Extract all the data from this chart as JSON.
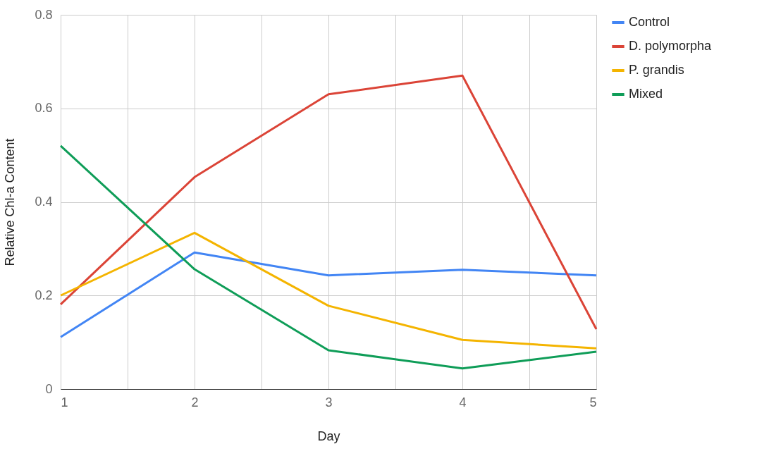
{
  "chart_data": {
    "type": "line",
    "xlabel": "Day",
    "ylabel": "Relative Chl-a Content",
    "x": [
      1,
      2,
      3,
      4,
      5
    ],
    "series": [
      {
        "name": "Control",
        "color": "#4285f4",
        "values": [
          0.111,
          0.292,
          0.243,
          0.255,
          0.243
        ]
      },
      {
        "name": "D. polymorpha",
        "color": "#db4437",
        "values": [
          0.181,
          0.453,
          0.63,
          0.67,
          0.128
        ]
      },
      {
        "name": "P. grandis",
        "color": "#f4b400",
        "values": [
          0.2,
          0.334,
          0.178,
          0.105,
          0.087
        ]
      },
      {
        "name": "Mixed",
        "color": "#0f9d58",
        "values": [
          0.52,
          0.256,
          0.083,
          0.044,
          0.08
        ]
      }
    ],
    "xlim": [
      1,
      5
    ],
    "xticks": [
      1,
      {
        "value": 1.5,
        "label": null
      },
      2,
      {
        "value": 2.5,
        "label": null
      },
      3,
      {
        "value": 3.5,
        "label": null
      },
      4,
      {
        "value": 4.5,
        "label": null
      },
      5
    ],
    "ylim": [
      0,
      0.8
    ],
    "yticks": [
      0,
      0.2,
      0.4,
      0.6,
      0.8
    ],
    "grid": true,
    "legend": "top right",
    "marker": "none",
    "line_style": "solid"
  }
}
